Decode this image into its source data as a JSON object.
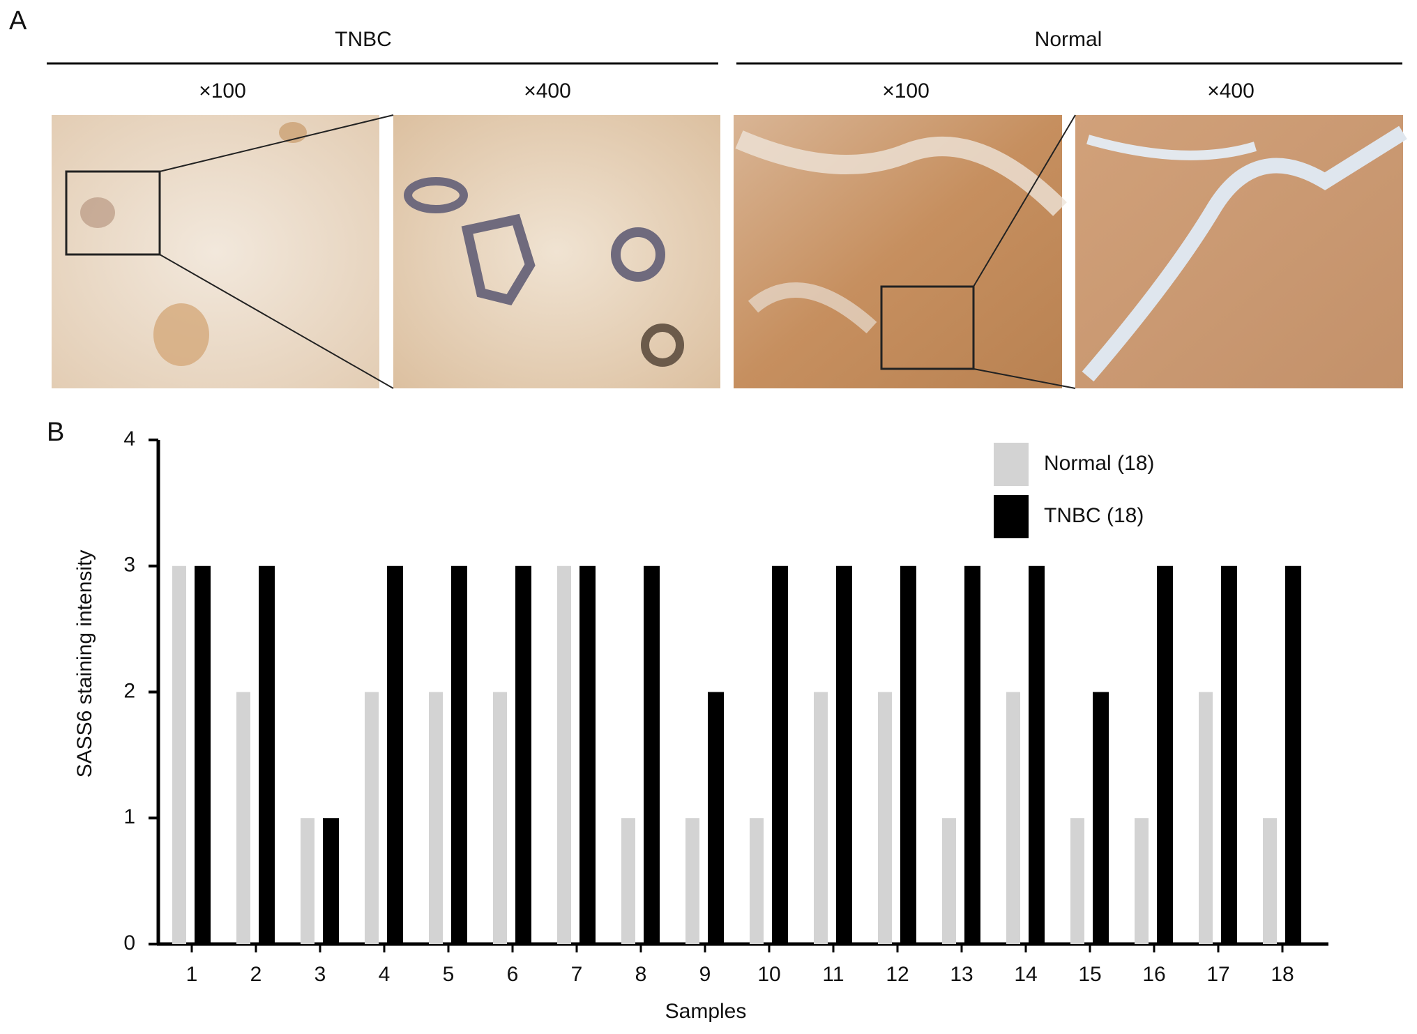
{
  "panel_labels": [
    "A",
    "B"
  ],
  "panel_a": {
    "groups": [
      {
        "title": "TNBC",
        "magnifications": [
          "×100",
          "×400"
        ]
      },
      {
        "title": "Normal",
        "magnifications": [
          "×100",
          "×400"
        ]
      }
    ]
  },
  "chart_data": {
    "type": "bar",
    "categories": [
      "1",
      "2",
      "3",
      "4",
      "5",
      "6",
      "7",
      "8",
      "9",
      "10",
      "11",
      "12",
      "13",
      "14",
      "15",
      "16",
      "17",
      "18"
    ],
    "series": [
      {
        "name": "Normal (18)",
        "color": "#d3d3d3",
        "values": [
          3,
          2,
          1,
          2,
          2,
          2,
          3,
          1,
          1,
          1,
          2,
          2,
          1,
          2,
          1,
          1,
          2,
          1
        ]
      },
      {
        "name": "TNBC (18)",
        "color": "#000000",
        "values": [
          3,
          3,
          1,
          3,
          3,
          3,
          3,
          3,
          2,
          3,
          3,
          3,
          3,
          3,
          2,
          3,
          3,
          3
        ]
      }
    ],
    "xlabel": "Samples",
    "ylabel": "SASS6 staining intensity",
    "ylim": [
      0,
      4
    ],
    "yticks": [
      0,
      1,
      2,
      3,
      4
    ],
    "grid": false,
    "legend": "upper right"
  }
}
